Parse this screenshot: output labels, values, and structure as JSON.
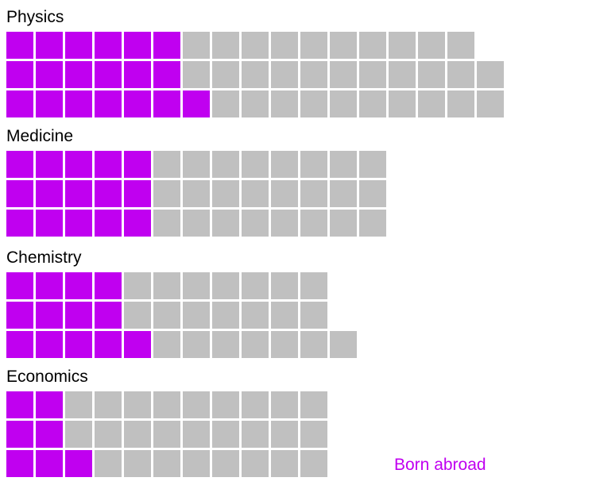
{
  "chart_data": {
    "type": "waffle",
    "title": "",
    "unit": "",
    "colors": {
      "born_abroad": "#c000f0",
      "other": "#c0c0c0"
    },
    "legend": {
      "label": "Born abroad",
      "placement": "bottom-right"
    },
    "groups": [
      {
        "name": "Physics",
        "rows": [
          {
            "born_abroad": 6,
            "total": 16
          },
          {
            "born_abroad": 6,
            "total": 17
          },
          {
            "born_abroad": 7,
            "total": 17
          }
        ]
      },
      {
        "name": "Medicine",
        "rows": [
          {
            "born_abroad": 5,
            "total": 13
          },
          {
            "born_abroad": 5,
            "total": 13
          },
          {
            "born_abroad": 5,
            "total": 13
          }
        ]
      },
      {
        "name": "Chemistry",
        "rows": [
          {
            "born_abroad": 4,
            "total": 11
          },
          {
            "born_abroad": 4,
            "total": 11
          },
          {
            "born_abroad": 5,
            "total": 12
          }
        ]
      },
      {
        "name": "Economics",
        "rows": [
          {
            "born_abroad": 2,
            "total": 11
          },
          {
            "born_abroad": 2,
            "total": 11
          },
          {
            "born_abroad": 3,
            "total": 11
          }
        ]
      }
    ]
  }
}
